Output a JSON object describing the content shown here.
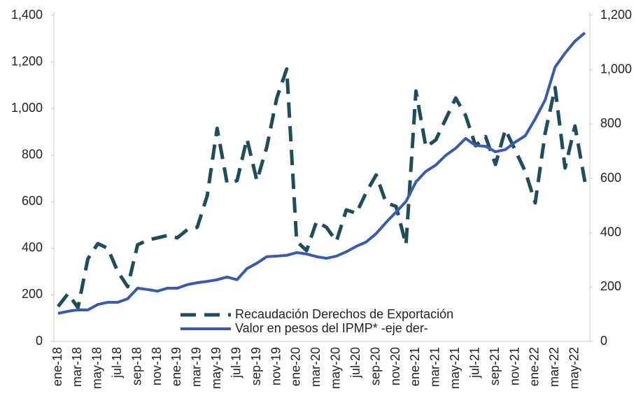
{
  "chart_data": {
    "type": "line",
    "categories": [
      "ene-18",
      null,
      "mar-18",
      null,
      "may-18",
      null,
      "jul-18",
      null,
      "sep-18",
      null,
      "nov-18",
      null,
      "ene-19",
      null,
      "mar-19",
      null,
      "may-19",
      null,
      "jul-19",
      null,
      "sep-19",
      null,
      "nov-19",
      null,
      "ene-20",
      null,
      "mar-20",
      null,
      "may-20",
      null,
      "jul-20",
      null,
      "sep-20",
      null,
      "nov-20",
      null,
      "ene-21",
      null,
      "mar-21",
      null,
      "may-21",
      null,
      "jul-21",
      null,
      "sep-21",
      null,
      "nov-21",
      null,
      "ene-22",
      null,
      "mar-22",
      null,
      "may-22",
      null
    ],
    "series": [
      {
        "name": "Recaudación Derechos de Exportación",
        "color": "#1f4e5a",
        "dashed": true,
        "values": [
          150,
          205,
          145,
          355,
          420,
          400,
          300,
          235,
          415,
          435,
          445,
          455,
          445,
          480,
          490,
          625,
          915,
          680,
          690,
          870,
          690,
          835,
          1045,
          1170,
          430,
          390,
          515,
          490,
          430,
          565,
          550,
          640,
          715,
          595,
          580,
          415,
          1075,
          835,
          865,
          955,
          1045,
          970,
          840,
          880,
          760,
          910,
          820,
          730,
          595,
          895,
          1090,
          745,
          925,
          685
        ]
      },
      {
        "name": "Valor en pesos del IPMP* -eje der-",
        "color": "#3a5ba9",
        "axis": "y2",
        "values": [
          103,
          111,
          116,
          116,
          136,
          144,
          144,
          157,
          196,
          191,
          185,
          196,
          196,
          209,
          216,
          221,
          227,
          237,
          227,
          268,
          288,
          312,
          314,
          317,
          327,
          322,
          312,
          306,
          314,
          330,
          350,
          366,
          397,
          438,
          476,
          515,
          587,
          626,
          649,
          685,
          711,
          747,
          721,
          718,
          698,
          706,
          734,
          757,
          819,
          889,
          1010,
          1061,
          1105,
          1136
        ]
      }
    ],
    "ylim": [
      0,
      1400
    ],
    "yticks": [
      0,
      200,
      400,
      600,
      800,
      {
        "value": 1000,
        "label": "1,000"
      },
      {
        "value": 1200,
        "label": "1,200"
      },
      {
        "value": 1400,
        "label": "1,400"
      }
    ],
    "y2lim": [
      0,
      1200
    ],
    "y2ticks": [
      0,
      200,
      400,
      600,
      800,
      {
        "value": 1000,
        "label": "1,000"
      },
      {
        "value": 1200,
        "label": "1,200"
      }
    ]
  }
}
